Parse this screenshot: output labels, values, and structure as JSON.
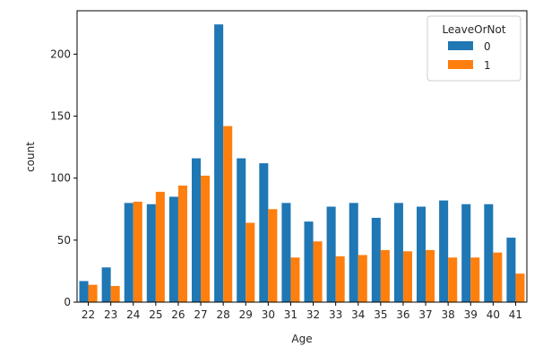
{
  "chart_data": {
    "type": "bar",
    "title": "",
    "xlabel": "Age",
    "ylabel": "count",
    "categories": [
      "22",
      "23",
      "24",
      "25",
      "26",
      "27",
      "28",
      "29",
      "30",
      "31",
      "32",
      "33",
      "34",
      "35",
      "36",
      "37",
      "38",
      "39",
      "40",
      "41"
    ],
    "series": [
      {
        "name": "0",
        "color": "#1f77b4",
        "values": [
          17,
          28,
          80,
          79,
          85,
          116,
          224,
          116,
          112,
          80,
          65,
          77,
          80,
          68,
          80,
          77,
          82,
          79,
          79,
          52
        ]
      },
      {
        "name": "1",
        "color": "#ff7f0e",
        "values": [
          14,
          13,
          81,
          89,
          94,
          102,
          142,
          64,
          75,
          36,
          49,
          37,
          38,
          42,
          41,
          42,
          36,
          36,
          40,
          23
        ]
      }
    ],
    "ylim": [
      0,
      235
    ],
    "yticks": [
      0,
      50,
      100,
      150,
      200
    ],
    "grid": false,
    "legend": {
      "title": "LeaveOrNot",
      "placement": "top-right"
    }
  }
}
